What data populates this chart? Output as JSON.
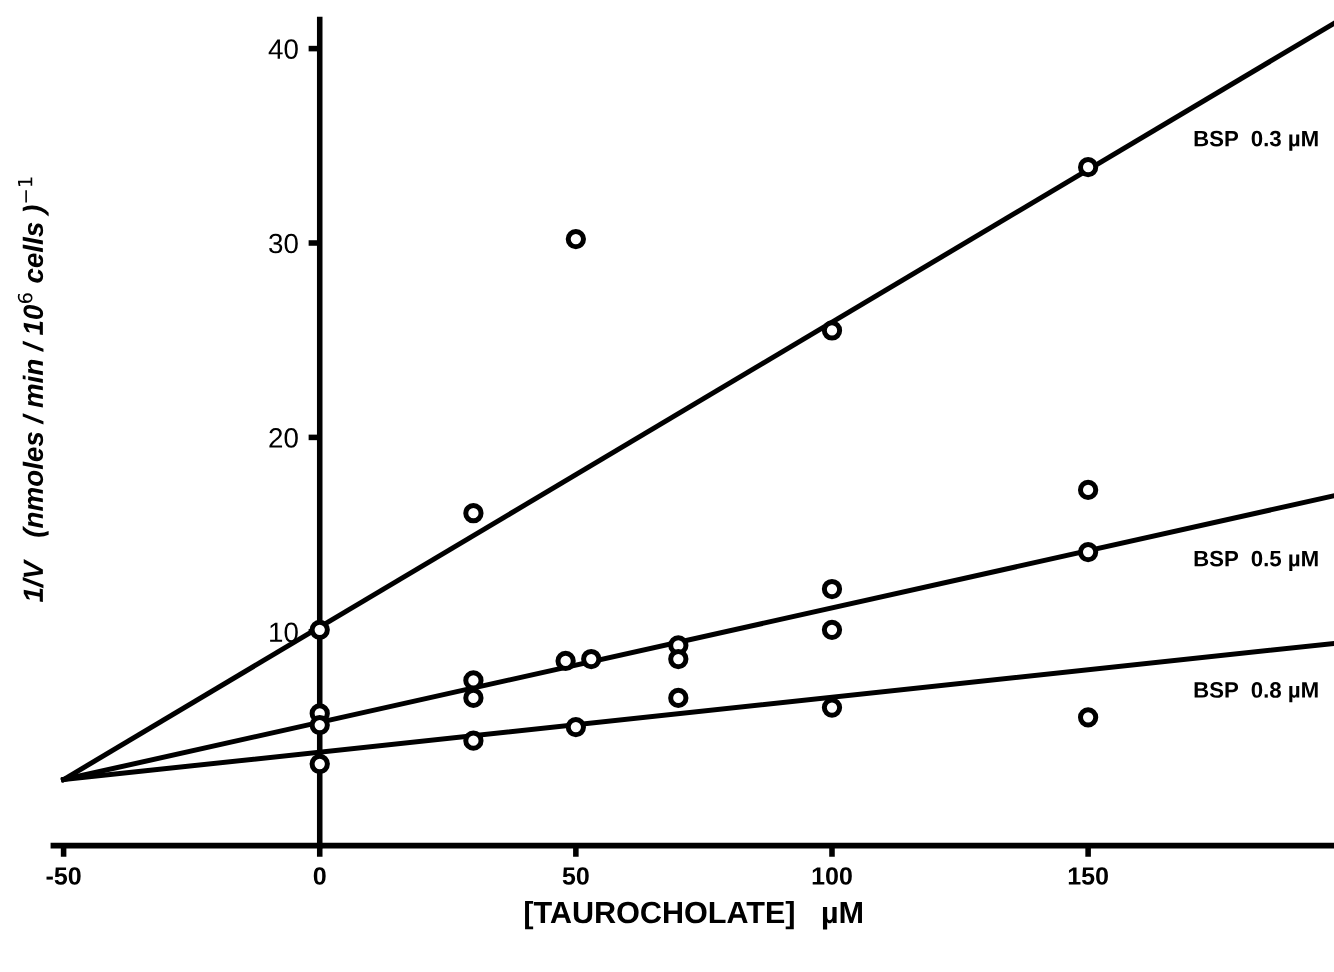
{
  "chart_data": {
    "type": "scatter",
    "xlabel": "[TAUROCHOLATE]   µM",
    "ylabel": "1/V   (nmoles / min / 10$^{6}$ cells )$^{−1}$",
    "xlim": [
      -52,
      198
    ],
    "ylim": [
      -1,
      41.5
    ],
    "xticks": [
      -50,
      0,
      50,
      100,
      150
    ],
    "yticks": [
      10,
      20,
      30,
      40
    ],
    "marker": "circle",
    "grid": false,
    "legend": false,
    "series": [
      {
        "color": "#000000",
        "x": [
          0,
          30,
          50,
          100,
          150
        ],
        "values": [
          10.1,
          16.1,
          30.2,
          25.5,
          33.9
        ]
      },
      {
        "color": "#000000",
        "x": [
          0,
          0,
          30,
          30,
          48,
          53,
          70,
          70,
          100,
          100,
          150,
          150
        ],
        "values": [
          5.8,
          5.2,
          7.5,
          6.6,
          8.5,
          8.6,
          9.3,
          8.6,
          12.2,
          10.1,
          17.3,
          14.1
        ]
      },
      {
        "color": "#000000",
        "x": [
          0,
          30,
          50,
          70,
          100,
          150
        ],
        "values": [
          3.2,
          4.4,
          5.1,
          6.6,
          6.1,
          5.6
        ]
      },
      {
        "type": "line",
        "name": "BSP  0.3 µM",
        "color": "#000000",
        "marker": "none",
        "x": [
          -50,
          198
        ],
        "values": [
          2.4,
          41.3
        ]
      },
      {
        "type": "line",
        "name": "BSP  0.5 µM",
        "color": "#000000",
        "marker": "none",
        "x": [
          -50,
          198
        ],
        "values": [
          2.4,
          17.0
        ]
      },
      {
        "type": "line",
        "name": "BSP  0.8 µM",
        "color": "#000000",
        "marker": "none",
        "x": [
          -50,
          198
        ],
        "values": [
          2.4,
          9.4
        ]
      }
    ]
  }
}
